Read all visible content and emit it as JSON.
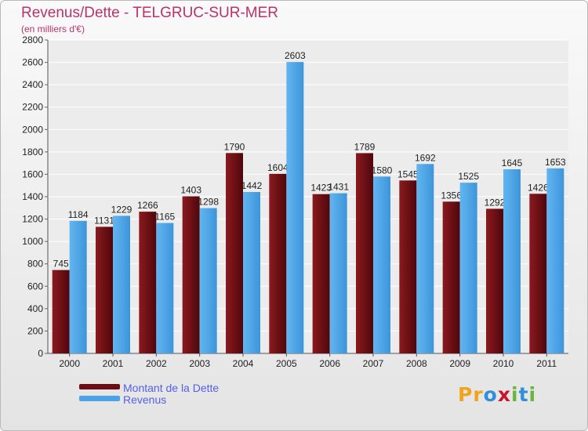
{
  "title": "Revenus/Dette - TELGRUC-SUR-MER",
  "subtitle": "(en milliers d'€)",
  "colors": {
    "title": "#b8336a",
    "dette": "#6b0d12",
    "revenus": "#4aa3e6",
    "legend_text": "#5560e8"
  },
  "legend": [
    {
      "label": "Montant de la Dette",
      "color": "#6b0d12"
    },
    {
      "label": "Revenus",
      "color": "#4aa3e6"
    }
  ],
  "logo": {
    "text": "Proxiti",
    "letters": [
      {
        "ch": "P",
        "color": "#f2a21b"
      },
      {
        "ch": "r",
        "color": "#f2a21b"
      },
      {
        "ch": "o",
        "color": "#2f8fd8"
      },
      {
        "ch": "x",
        "color": "#c6172b"
      },
      {
        "ch": "i",
        "color": "#6db33f"
      },
      {
        "ch": "t",
        "color": "#2f8fd8"
      },
      {
        "ch": "i",
        "color": "#6db33f"
      }
    ]
  },
  "chart_data": {
    "type": "bar",
    "title": "Revenus/Dette - TELGRUC-SUR-MER",
    "subtitle": "(en milliers d'€)",
    "categories": [
      "2000",
      "2001",
      "2002",
      "2003",
      "2004",
      "2005",
      "2006",
      "2007",
      "2008",
      "2009",
      "2010",
      "2011"
    ],
    "series": [
      {
        "name": "Montant de la Dette",
        "color": "#6b0d12",
        "values": [
          745,
          1131,
          1266,
          1403,
          1790,
          1604,
          1423,
          1789,
          1545,
          1356,
          1292,
          1426
        ]
      },
      {
        "name": "Revenus",
        "color": "#4aa3e6",
        "values": [
          1184,
          1229,
          1165,
          1298,
          1442,
          2603,
          1431,
          1580,
          1692,
          1525,
          1645,
          1653
        ]
      }
    ],
    "ylim": [
      0,
      2800
    ],
    "yticks": [
      0,
      200,
      400,
      600,
      800,
      1000,
      1200,
      1400,
      1600,
      1800,
      2000,
      2200,
      2400,
      2600,
      2800
    ],
    "grid": true,
    "legend_position": "bottom-left"
  }
}
